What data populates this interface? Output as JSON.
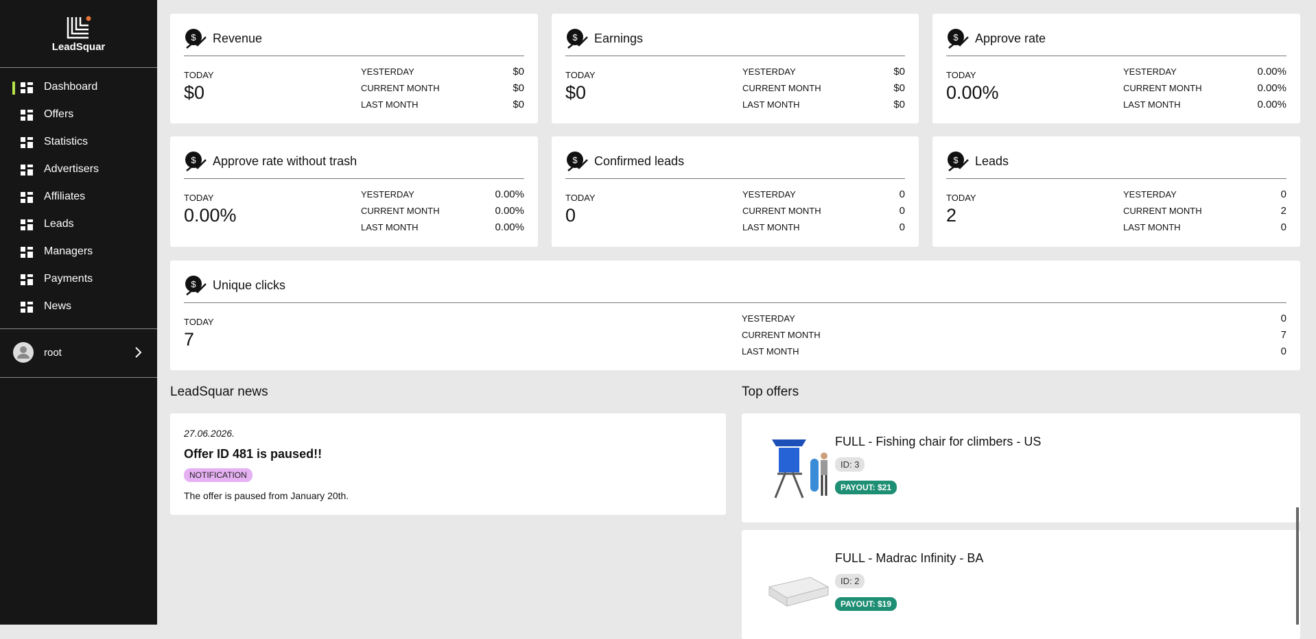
{
  "sidebar": {
    "brand": "LeadSquar",
    "menu": [
      "Dashboard",
      "Offers",
      "Statistics",
      "Advertisers",
      "Affiliates",
      "Leads",
      "Managers",
      "Payments",
      "News"
    ],
    "user": "root"
  },
  "cards": [
    {
      "title": "Revenue",
      "today": {
        "label": "TODAY",
        "value": "$0"
      },
      "rows": [
        {
          "label": "YESTERDAY",
          "value": "$0"
        },
        {
          "label": "CURRENT MONTH",
          "value": "$0"
        },
        {
          "label": "LAST MONTH",
          "value": "$0"
        }
      ]
    },
    {
      "title": "Earnings",
      "today": {
        "label": "TODAY",
        "value": "$0"
      },
      "rows": [
        {
          "label": "YESTERDAY",
          "value": "$0"
        },
        {
          "label": "CURRENT MONTH",
          "value": "$0"
        },
        {
          "label": "LAST MONTH",
          "value": "$0"
        }
      ]
    },
    {
      "title": "Approve rate",
      "today": {
        "label": "TODAY",
        "value": "0.00%"
      },
      "rows": [
        {
          "label": "YESTERDAY",
          "value": "0.00%"
        },
        {
          "label": "CURRENT MONTH",
          "value": "0.00%"
        },
        {
          "label": "LAST MONTH",
          "value": "0.00%"
        }
      ]
    },
    {
      "title": "Approve rate without trash",
      "today": {
        "label": "TODAY",
        "value": "0.00%"
      },
      "rows": [
        {
          "label": "YESTERDAY",
          "value": "0.00%"
        },
        {
          "label": "CURRENT MONTH",
          "value": "0.00%"
        },
        {
          "label": "LAST MONTH",
          "value": "0.00%"
        }
      ]
    },
    {
      "title": "Confirmed leads",
      "today": {
        "label": "TODAY",
        "value": "0"
      },
      "rows": [
        {
          "label": "YESTERDAY",
          "value": "0"
        },
        {
          "label": "CURRENT MONTH",
          "value": "0"
        },
        {
          "label": "LAST MONTH",
          "value": "0"
        }
      ]
    },
    {
      "title": "Leads",
      "today": {
        "label": "TODAY",
        "value": "2"
      },
      "rows": [
        {
          "label": "YESTERDAY",
          "value": "0"
        },
        {
          "label": "CURRENT MONTH",
          "value": "2"
        },
        {
          "label": "LAST MONTH",
          "value": "0"
        }
      ]
    },
    {
      "title": "Unique clicks",
      "today": {
        "label": "TODAY",
        "value": "7"
      },
      "rows": [
        {
          "label": "YESTERDAY",
          "value": "0"
        },
        {
          "label": "CURRENT MONTH",
          "value": "7"
        },
        {
          "label": "LAST MONTH",
          "value": "0"
        }
      ]
    }
  ],
  "news": {
    "heading": "LeadSquar news",
    "items": [
      {
        "date": "27.06.2026.",
        "title": "Offer ID 481 is paused!!",
        "tag": "NOTIFICATION",
        "body": "The offer is paused from January 20th."
      }
    ]
  },
  "offers": {
    "heading": "Top offers",
    "items": [
      {
        "title": "FULL - Fishing chair for climbers - US",
        "id": "ID: 3",
        "payout": "PAYOUT: $21"
      },
      {
        "title": "FULL - Madrac Infinity - BA",
        "id": "ID: 2",
        "payout": "PAYOUT: $19"
      }
    ]
  }
}
